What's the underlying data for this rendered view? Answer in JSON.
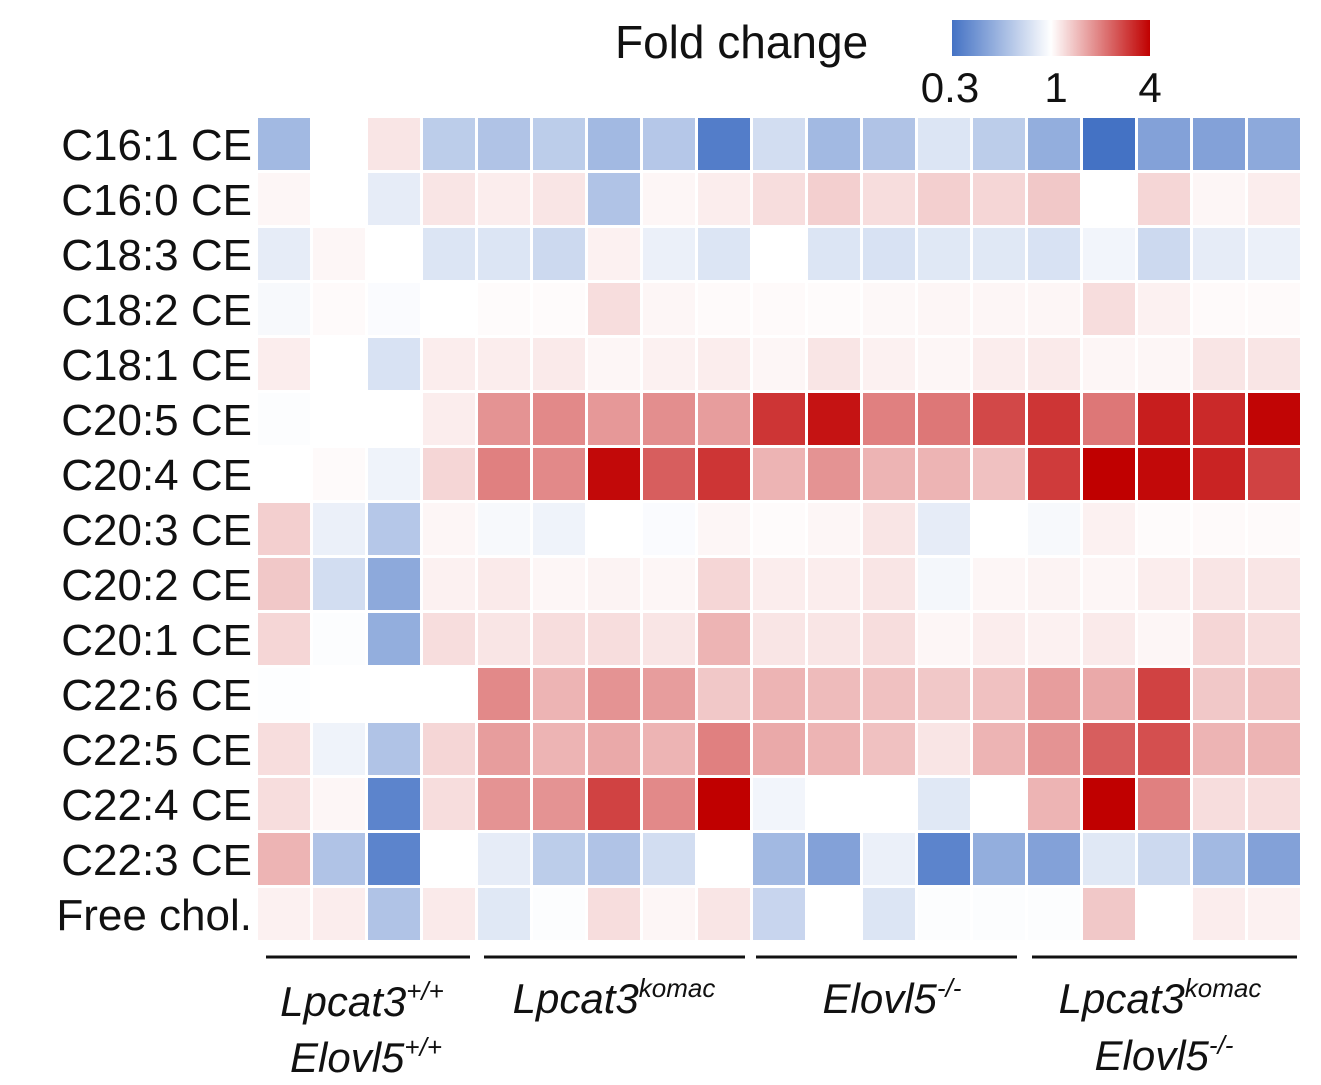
{
  "chart_data": {
    "type": "heatmap",
    "title": "",
    "legend": {
      "title": "Fold change",
      "ticks": [
        "0.3",
        "1",
        "4"
      ],
      "tick_values": [
        0.3,
        1,
        4
      ],
      "colors": [
        "#4472c4",
        "#ffffff",
        "#c00000"
      ],
      "scale": "log"
    },
    "rows": [
      "C16:1 CE",
      "C16:0 CE",
      "C18:3 CE",
      "C18:2 CE",
      "C18:1 CE",
      "C20:5 CE",
      "C20:4 CE",
      "C20:3 CE",
      "C20:2 CE",
      "C20:1 CE",
      "C22:6 CE",
      "C22:5 CE",
      "C22:4 CE",
      "C22:3 CE",
      "Free chol."
    ],
    "groups": [
      {
        "name": "Lpcat3",
        "sup": "+/+",
        "line2": "Elovl5",
        "sup2": "+/+",
        "n": 4
      },
      {
        "name": "Lpcat3",
        "sup": "komac",
        "line2": "",
        "sup2": "",
        "n": 5
      },
      {
        "name": "Elovl5",
        "sup": "-/-",
        "line2": "",
        "sup2": "",
        "n": 5
      },
      {
        "name": "Lpcat3",
        "sup": "komac",
        "line2": "Elovl5",
        "sup2": "-/-",
        "n": 5
      }
    ],
    "values": [
      [
        0.55,
        1.0,
        1.15,
        0.65,
        0.6,
        0.65,
        0.55,
        0.62,
        0.33,
        0.75,
        0.55,
        0.6,
        0.8,
        0.65,
        0.5,
        0.28,
        0.45,
        0.45,
        0.48
      ],
      [
        1.05,
        1.0,
        0.85,
        1.15,
        1.1,
        1.15,
        0.6,
        1.05,
        1.1,
        1.2,
        1.3,
        1.2,
        1.3,
        1.25,
        1.35,
        1.0,
        1.25,
        1.05,
        1.1
      ],
      [
        0.85,
        1.05,
        1.0,
        0.8,
        0.8,
        0.72,
        1.08,
        0.88,
        0.8,
        1.0,
        0.8,
        0.78,
        0.82,
        0.82,
        0.78,
        0.92,
        0.72,
        0.85,
        0.88
      ],
      [
        0.95,
        1.03,
        0.97,
        1.0,
        1.02,
        1.02,
        1.2,
        1.05,
        1.03,
        1.03,
        1.02,
        1.04,
        1.05,
        1.05,
        1.05,
        1.2,
        1.08,
        1.03,
        1.03
      ],
      [
        1.1,
        1.0,
        0.78,
        1.1,
        1.1,
        1.12,
        1.05,
        1.08,
        1.1,
        1.05,
        1.15,
        1.08,
        1.05,
        1.1,
        1.12,
        1.05,
        1.05,
        1.15,
        1.15
      ],
      [
        0.98,
        1.0,
        1.0,
        1.1,
        1.8,
        1.9,
        1.75,
        1.85,
        1.7,
        3.0,
        3.6,
        2.0,
        2.1,
        2.7,
        3.0,
        2.1,
        3.4,
        3.2,
        3.9
      ],
      [
        1.0,
        1.03,
        0.9,
        1.25,
        2.0,
        1.9,
        3.8,
        2.4,
        3.0,
        1.5,
        1.8,
        1.5,
        1.5,
        1.4,
        2.9,
        4.3,
        3.8,
        3.3,
        2.8
      ],
      [
        1.3,
        0.88,
        0.62,
        1.05,
        0.95,
        0.9,
        1.0,
        0.97,
        1.05,
        1.02,
        1.05,
        1.15,
        0.85,
        1.0,
        0.95,
        1.08,
        1.02,
        1.03,
        1.03
      ],
      [
        1.35,
        0.75,
        0.48,
        1.08,
        1.12,
        1.05,
        1.07,
        1.05,
        1.25,
        1.1,
        1.1,
        1.15,
        0.93,
        1.05,
        1.07,
        1.05,
        1.1,
        1.15,
        1.15
      ],
      [
        1.25,
        0.98,
        0.5,
        1.2,
        1.15,
        1.2,
        1.2,
        1.15,
        1.5,
        1.15,
        1.15,
        1.2,
        1.05,
        1.1,
        1.08,
        1.12,
        1.05,
        1.25,
        1.2
      ],
      [
        0.99,
        1.0,
        1.0,
        1.0,
        1.9,
        1.5,
        1.8,
        1.7,
        1.35,
        1.5,
        1.45,
        1.4,
        1.35,
        1.4,
        1.7,
        1.6,
        2.8,
        1.35,
        1.4
      ],
      [
        1.2,
        0.9,
        0.6,
        1.25,
        1.7,
        1.5,
        1.6,
        1.5,
        2.0,
        1.6,
        1.5,
        1.4,
        1.15,
        1.5,
        1.8,
        2.4,
        2.6,
        1.5,
        1.5
      ],
      [
        1.2,
        1.05,
        0.35,
        1.2,
        1.8,
        1.8,
        2.8,
        1.9,
        4.0,
        0.92,
        1.0,
        1.0,
        0.82,
        1.0,
        1.5,
        4.2,
        2.0,
        1.2,
        1.2
      ],
      [
        1.5,
        0.6,
        0.35,
        1.0,
        0.85,
        0.65,
        0.6,
        0.75,
        1.0,
        0.55,
        0.45,
        0.88,
        0.35,
        0.5,
        0.45,
        0.82,
        0.72,
        0.55,
        0.45
      ],
      [
        1.08,
        1.1,
        0.6,
        1.12,
        0.82,
        0.98,
        1.2,
        1.05,
        1.15,
        0.7,
        1.0,
        0.8,
        0.98,
        0.98,
        0.98,
        1.35,
        1.0,
        1.1,
        1.08
      ]
    ]
  }
}
